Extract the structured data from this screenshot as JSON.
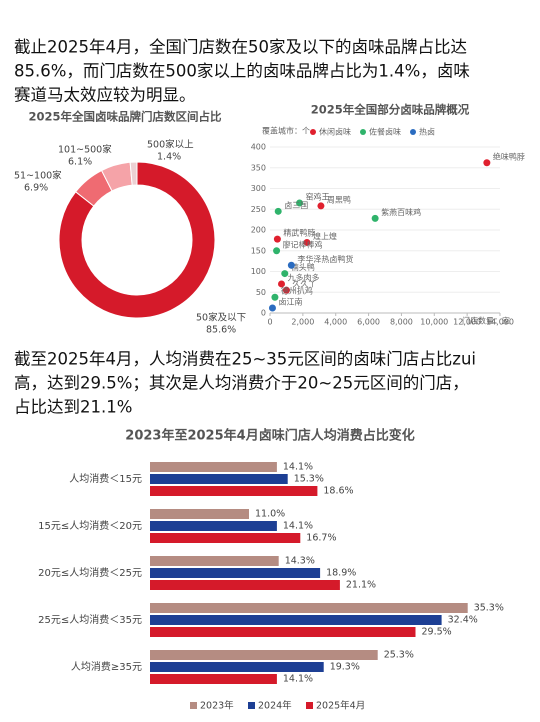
{
  "paragraphs": [
    {
      "lines": [
        "截止2025年4月，全国门店数在50家及以下的卤味品牌占比达",
        "85.6%，而门店数在500家以上的卤味品牌占比为1.4%，卤味",
        "赛道马太效应较为明显。"
      ]
    },
    {
      "lines": [
        "截至2025年4月，人均消费在25~35元区间的卤味门店占比zui",
        "高，达到29.5%；其次是人均消费介于20~25元区间的门店，",
        "占比达到21.1%"
      ]
    }
  ],
  "chart_data": [
    {
      "type": "donut",
      "title": "2025年全国卤味品牌门店数区间占比",
      "categories": [
        "50家及以下",
        "51~100家",
        "101~500家",
        "500家以上"
      ],
      "values": [
        85.6,
        6.9,
        6.1,
        1.4
      ],
      "value_labels": [
        "85.6%",
        "6.9%",
        "6.1%",
        "1.4%"
      ],
      "colors": [
        "#d51a2a",
        "#ef6b72",
        "#f5a3a8",
        "#ecd0d3"
      ]
    },
    {
      "type": "scatter",
      "title": "2025年全国部分卤味品牌概况",
      "ylabel": "覆盖城市：个",
      "xlabel": "门店数量：家",
      "xlim": [
        0,
        14000
      ],
      "ylim": [
        0,
        400
      ],
      "xticks": [
        0,
        {
          "value": 2000,
          "label": "2,000"
        },
        {
          "value": 4000,
          "label": "4,000"
        },
        {
          "value": 6000,
          "label": "6,000"
        },
        {
          "value": 8000,
          "label": "8,000"
        },
        {
          "value": 10000,
          "label": "10,000"
        },
        {
          "value": 12000,
          "label": "12,000"
        },
        {
          "value": 14000,
          "label": "14,000"
        }
      ],
      "yticks": [
        0,
        50,
        100,
        150,
        200,
        250,
        300,
        350,
        400
      ],
      "grid": true,
      "series": [
        {
          "name": "休闲卤味",
          "color": "#e0202e",
          "x": [
            13200,
            3100,
            450,
            2250,
            700,
            1000
          ],
          "values": [
            362,
            258,
            178,
            170,
            70,
            55
          ],
          "labels": [
            "绝味鸭脖",
            "周黑鸭",
            "精武鸭脖",
            "煌上煌",
            "九多肉多",
            "久久丫"
          ]
        },
        {
          "name": "佐餐卤味",
          "color": "#2fb36b",
          "x": [
            6400,
            1800,
            500,
            400,
            900,
            300
          ],
          "values": [
            228,
            265,
            245,
            150,
            95,
            38
          ],
          "labels": [
            "紫燕百味鸡",
            "窑鸡王",
            "卤三国",
            "廖记棒棒鸡",
            "楠头鸭",
            "德州扒鸡"
          ]
        },
        {
          "name": "热卤",
          "color": "#2b6cc0",
          "x": [
            1300,
            150
          ],
          "values": [
            115,
            12
          ],
          "labels": [
            "李华泽热卤鸭货",
            "卤江南"
          ]
        }
      ]
    },
    {
      "type": "hbar",
      "title": "2023年至2025年4月卤味门店人均消费占比变化",
      "categories": [
        "人均消费＜15元",
        "15元≤人均消费＜20元",
        "20元≤人均消费＜25元",
        "25元≤人均消费＜35元",
        "人均消费≥35元"
      ],
      "series": [
        {
          "name": "2023年",
          "color": "#b58c82",
          "values": [
            14.1,
            11.0,
            14.3,
            35.3,
            25.3
          ],
          "value_labels": [
            "14.1%",
            "11.0%",
            "14.3%",
            "35.3%",
            "25.3%"
          ]
        },
        {
          "name": "2024年",
          "color": "#1d3f94",
          "values": [
            15.3,
            14.1,
            18.9,
            32.4,
            19.3
          ],
          "value_labels": [
            "15.3%",
            "14.1%",
            "18.9%",
            "32.4%",
            "19.3%"
          ]
        },
        {
          "name": "2025年4月",
          "color": "#d51a2a",
          "values": [
            18.6,
            16.7,
            21.1,
            29.5,
            14.1
          ],
          "value_labels": [
            "18.6%",
            "16.7%",
            "21.1%",
            "29.5%",
            "14.1%"
          ]
        }
      ]
    }
  ]
}
